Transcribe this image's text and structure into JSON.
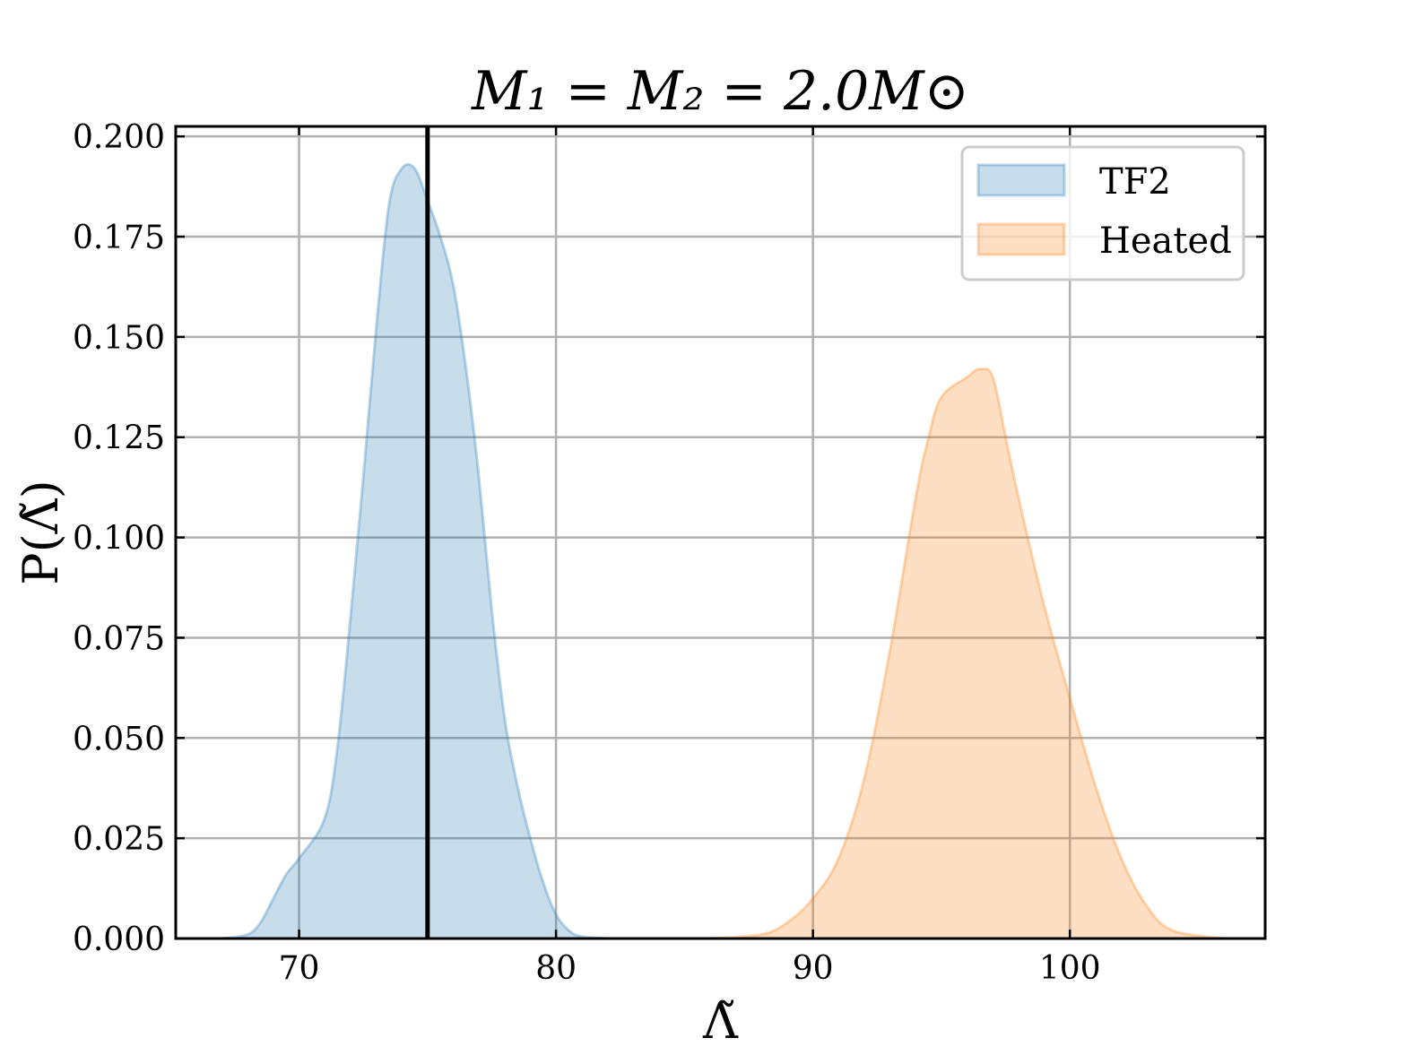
{
  "chart_data": {
    "type": "area",
    "title": "M₁ = M₂ = 2.0M⊙",
    "xlabel": "Λ̃",
    "ylabel": "P(Λ̃)",
    "xlim": [
      65.2,
      107.6
    ],
    "ylim": [
      0.0,
      0.2025
    ],
    "xticks": [
      70,
      80,
      90,
      100
    ],
    "yticks": [
      0.0,
      0.025,
      0.05,
      0.075,
      0.1,
      0.125,
      0.15,
      0.175,
      0.2
    ],
    "x_tick_labels": [
      "70",
      "80",
      "90",
      "100"
    ],
    "y_tick_labels": [
      "0.000",
      "0.025",
      "0.050",
      "0.075",
      "0.100",
      "0.125",
      "0.150",
      "0.175",
      "0.200"
    ],
    "grid": true,
    "legend_position": "top-right",
    "series": [
      {
        "name": "TF2",
        "color": "#1f77b4",
        "x": [
          67,
          68,
          68.5,
          69,
          69.5,
          70,
          71,
          71.5,
          72,
          72.5,
          73,
          73.5,
          74,
          74.5,
          75,
          75.5,
          76,
          76.5,
          77,
          77.5,
          78,
          78.5,
          79,
          79.5,
          80,
          80.5,
          81,
          82
        ],
        "y": [
          0.0,
          0.001,
          0.004,
          0.01,
          0.016,
          0.02,
          0.03,
          0.048,
          0.08,
          0.115,
          0.152,
          0.183,
          0.192,
          0.192,
          0.184,
          0.175,
          0.163,
          0.142,
          0.115,
          0.082,
          0.055,
          0.038,
          0.025,
          0.014,
          0.006,
          0.002,
          0.0005,
          0.0
        ]
      },
      {
        "name": "Heated",
        "color": "#ff7f0e",
        "x": [
          86,
          88,
          89,
          90,
          91,
          92,
          93,
          94,
          94.5,
          95,
          96,
          96.5,
          97,
          97.5,
          98,
          99,
          100,
          101,
          102,
          103,
          104,
          106
        ],
        "y": [
          0.0,
          0.001,
          0.004,
          0.01,
          0.02,
          0.04,
          0.072,
          0.11,
          0.125,
          0.135,
          0.14,
          0.142,
          0.14,
          0.125,
          0.11,
          0.083,
          0.06,
          0.038,
          0.02,
          0.008,
          0.002,
          0.0
        ]
      }
    ],
    "vertical_line": {
      "x": 75.0,
      "color": "#000000"
    }
  }
}
